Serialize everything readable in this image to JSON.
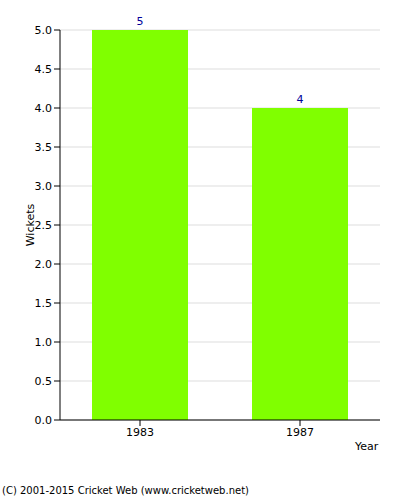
{
  "chart_data": {
    "type": "bar",
    "categories": [
      "1983",
      "1987"
    ],
    "values": [
      5,
      4
    ],
    "color": "#80ff00",
    "ylabel": "Wickets",
    "xlabel": "Year",
    "annotation": "(C) 2001-2015 Cricket Web (www.cricketweb.net)",
    "ylim": [
      0,
      5
    ],
    "yticks": [
      {
        "value": 0,
        "label": "0.0"
      },
      {
        "value": 0.5,
        "label": "0.5"
      },
      {
        "value": 1,
        "label": "1.0"
      },
      {
        "value": 1.5,
        "label": "1.5"
      },
      {
        "value": 2,
        "label": "2.0"
      },
      {
        "value": 2.5,
        "label": "2.5"
      },
      {
        "value": 3,
        "label": "3.0"
      },
      {
        "value": 3.5,
        "label": "3.5"
      },
      {
        "value": 4,
        "label": "4.0"
      },
      {
        "value": 4.5,
        "label": "4.5"
      },
      {
        "value": 5,
        "label": "5.0"
      }
    ],
    "grid": true,
    "data_labels": true
  }
}
